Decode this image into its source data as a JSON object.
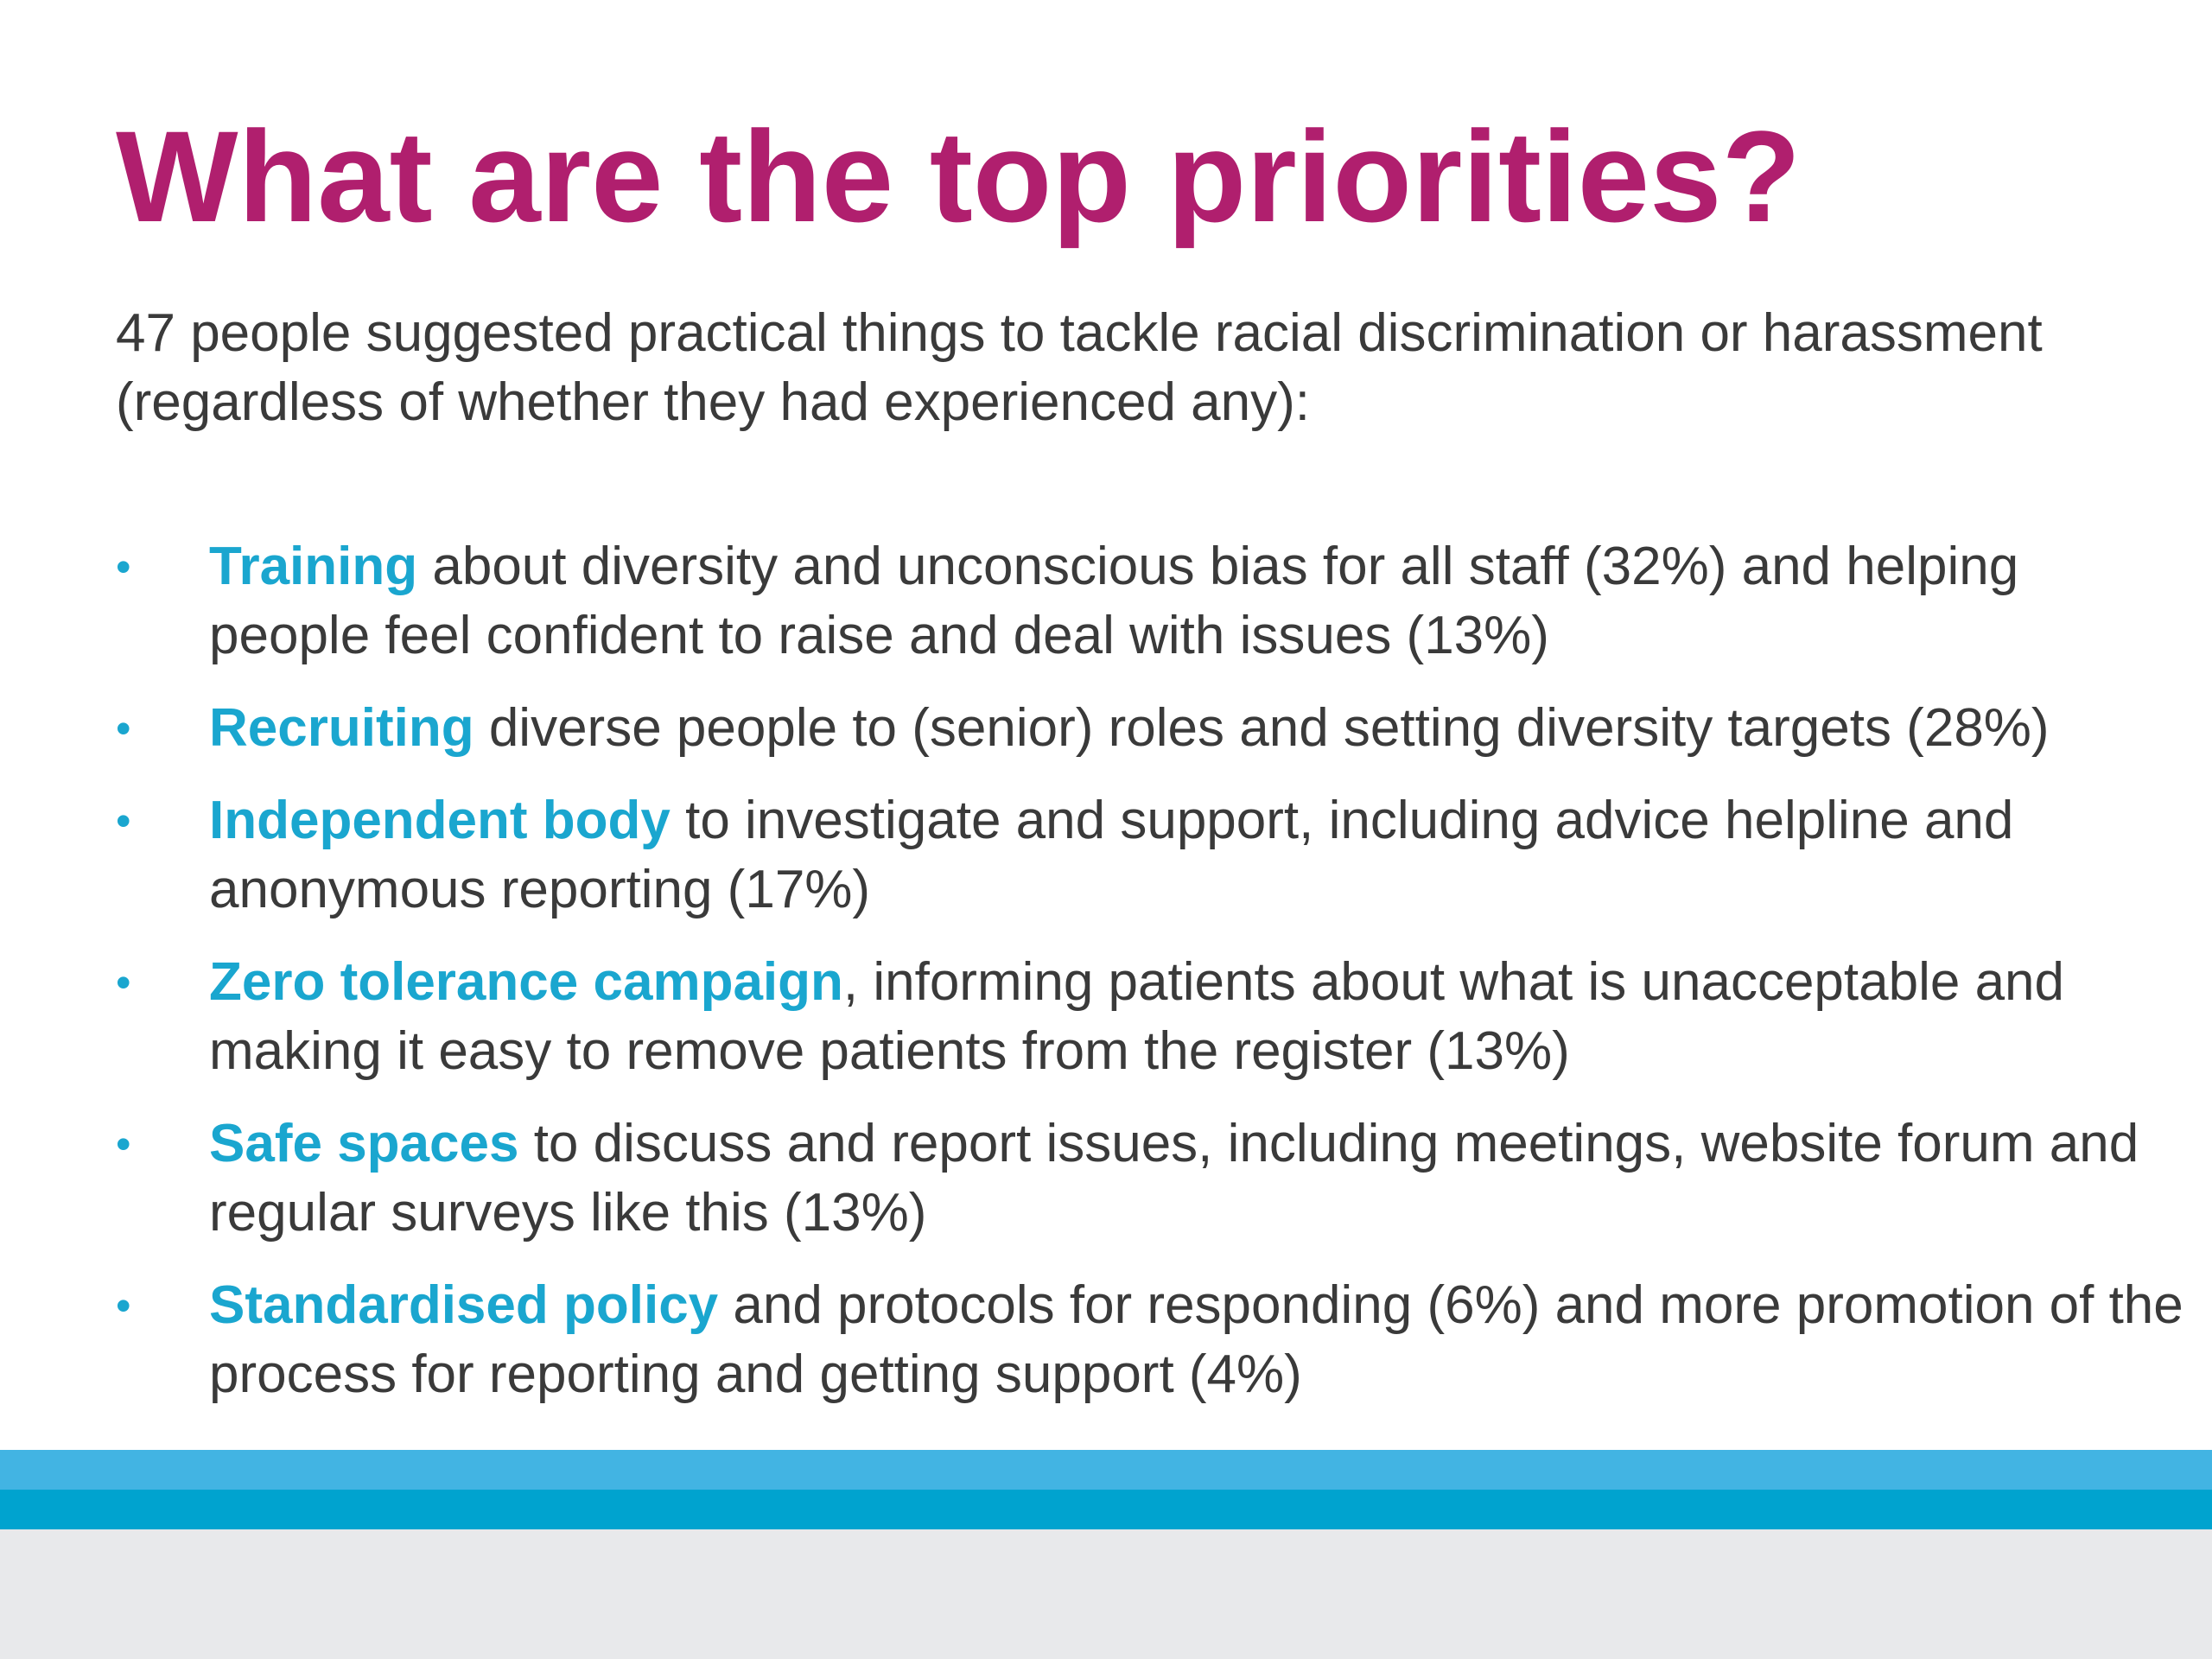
{
  "slide": {
    "title": "What are the top priorities?",
    "intro": "47 people suggested practical things to tackle racial discrimination or harassment (regardless of whether they had experienced any):",
    "bullet_glyph": "•",
    "bullets": [
      {
        "keyword": "Training",
        "text": " about diversity and unconscious bias for all staff (32%) and helping people feel confident to raise and deal with issues (13%)"
      },
      {
        "keyword": "Recruiting",
        "text": " diverse people to (senior) roles and setting diversity targets (28%)"
      },
      {
        "keyword": "Independent body",
        "text": " to investigate and support, including advice helpline and anonymous reporting (17%)"
      },
      {
        "keyword": "Zero tolerance campaign",
        "text": ", informing patients about what is unacceptable and making it easy to remove patients from the register (13%)"
      },
      {
        "keyword": "Safe spaces",
        "text": " to discuss and report issues, including meetings, website forum and regular surveys like this (13%)"
      },
      {
        "keyword": "Standardised policy",
        "text": " and protocols for responding (6%) and more promotion of the process for reporting and getting support (4%)"
      }
    ]
  },
  "colors": {
    "title": "#b01f6e",
    "keyword": "#1aa6cf",
    "body_text": "#3a3a3a",
    "stripe_light": "#42b4e3",
    "stripe_dark": "#00a3cf",
    "footer_band": "#e8e9eb"
  }
}
